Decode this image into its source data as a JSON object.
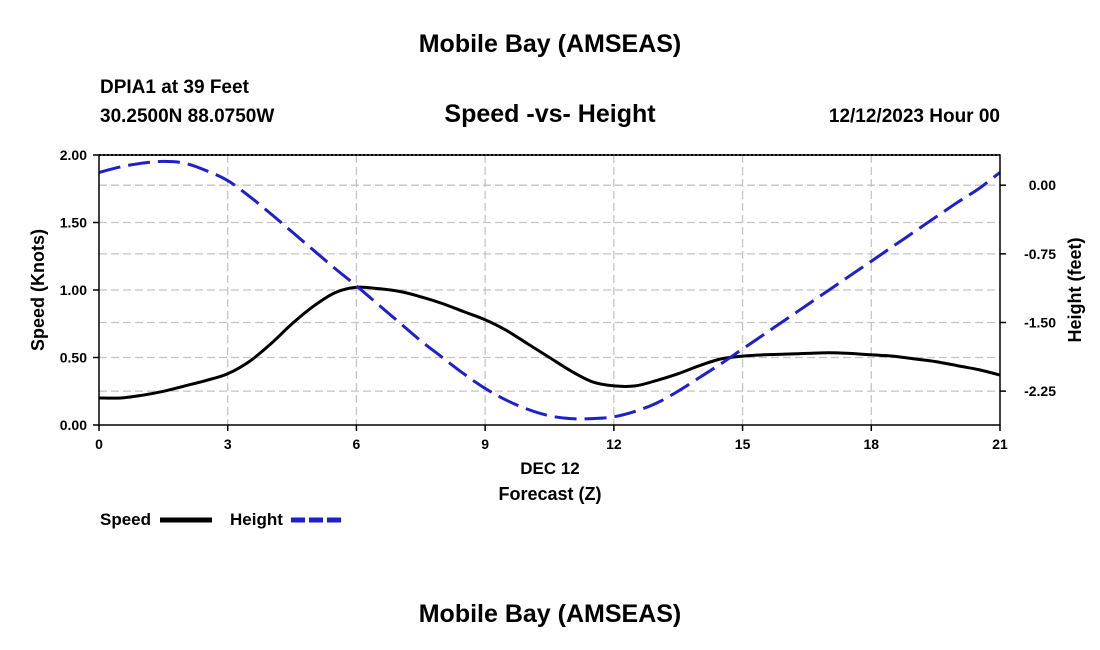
{
  "header": {
    "title": "Mobile Bay (AMSEAS)",
    "station": "DPIA1 at 39 Feet",
    "coords": "30.2500N  88.0750W",
    "subtitle": "Speed -vs- Height",
    "datetime": "12/12/2023 Hour 00"
  },
  "footer": {
    "title": "Mobile Bay (AMSEAS)"
  },
  "chart_data": {
    "type": "line",
    "x_ticks": [
      "0",
      "3",
      "6",
      "9",
      "12",
      "15",
      "18",
      "21"
    ],
    "x_tick_values": [
      0,
      3,
      6,
      9,
      12,
      15,
      18,
      21
    ],
    "xlim": [
      0,
      21
    ],
    "date_label": "DEC 12",
    "xlabel": "Forecast (Z)",
    "ylabel": "Speed (Knots)",
    "ylim": [
      0,
      2
    ],
    "y_ticks": [
      "0.00",
      "0.50",
      "1.00",
      "1.50",
      "2.00"
    ],
    "y_tick_values": [
      0,
      0.5,
      1.0,
      1.5,
      2.0
    ],
    "y2label": "Height (feet)",
    "y2lim": [
      -2.62,
      0.33
    ],
    "y2_ticks": [
      "0.00",
      "-0.75",
      "-1.50",
      "-2.25"
    ],
    "y2_tick_values": [
      0,
      -0.75,
      -1.5,
      -2.25
    ],
    "grid": true,
    "legend_position": "bottom-left",
    "series": [
      {
        "name": "Speed",
        "axis": "left",
        "color": "#000000",
        "style": "solid",
        "x": [
          0,
          0.5,
          1,
          1.5,
          2,
          2.5,
          3,
          3.5,
          4,
          4.5,
          5,
          5.5,
          6,
          6.5,
          7,
          7.5,
          8,
          8.5,
          9,
          9.5,
          10,
          10.5,
          11,
          11.5,
          12,
          12.5,
          13,
          13.5,
          14,
          14.5,
          15,
          15.5,
          16,
          16.5,
          17,
          17.5,
          18,
          18.5,
          19,
          19.5,
          20,
          20.5,
          21
        ],
        "values": [
          0.2,
          0.2,
          0.22,
          0.25,
          0.29,
          0.33,
          0.38,
          0.47,
          0.6,
          0.75,
          0.88,
          0.98,
          1.02,
          1.01,
          0.99,
          0.95,
          0.9,
          0.84,
          0.78,
          0.7,
          0.6,
          0.5,
          0.4,
          0.32,
          0.29,
          0.29,
          0.33,
          0.38,
          0.44,
          0.49,
          0.51,
          0.52,
          0.525,
          0.53,
          0.535,
          0.53,
          0.52,
          0.51,
          0.49,
          0.47,
          0.44,
          0.41,
          0.37
        ]
      },
      {
        "name": "Height",
        "axis": "right",
        "color": "#1f1fcc",
        "style": "dashed",
        "x": [
          0,
          0.5,
          1,
          1.5,
          2,
          2.5,
          3,
          3.5,
          4,
          4.5,
          5,
          5.5,
          6,
          6.5,
          7,
          7.5,
          8,
          8.5,
          9,
          9.5,
          10,
          10.5,
          11,
          11.5,
          12,
          12.5,
          13,
          13.5,
          14,
          14.5,
          15,
          15.5,
          16,
          16.5,
          17,
          17.5,
          18,
          18.5,
          19,
          19.5,
          20,
          20.5,
          21
        ],
        "values": [
          0.14,
          0.2,
          0.24,
          0.26,
          0.24,
          0.16,
          0.05,
          -0.12,
          -0.31,
          -0.51,
          -0.71,
          -0.91,
          -1.1,
          -1.3,
          -1.5,
          -1.7,
          -1.88,
          -2.06,
          -2.22,
          -2.35,
          -2.45,
          -2.52,
          -2.55,
          -2.55,
          -2.53,
          -2.47,
          -2.38,
          -2.25,
          -2.1,
          -1.95,
          -1.79,
          -1.63,
          -1.47,
          -1.31,
          -1.15,
          -0.99,
          -0.83,
          -0.67,
          -0.51,
          -0.35,
          -0.19,
          -0.04,
          0.14
        ]
      }
    ],
    "legend": [
      {
        "label": "Speed",
        "color": "#000000",
        "style": "solid"
      },
      {
        "label": "Height",
        "color": "#1f1fcc",
        "style": "dashed"
      }
    ]
  }
}
